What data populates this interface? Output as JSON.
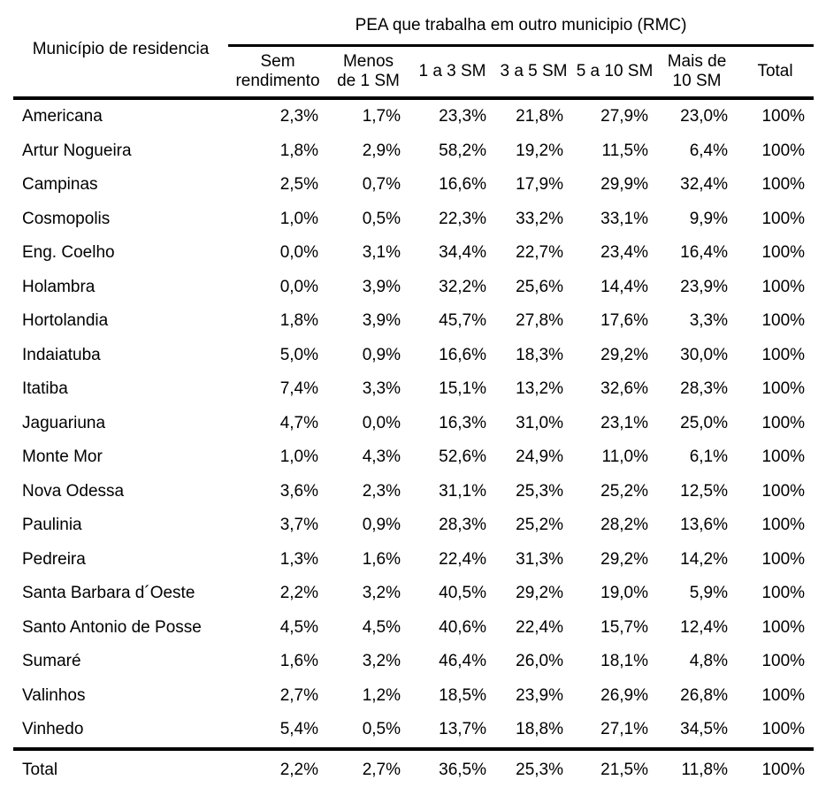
{
  "table": {
    "group_header": "PEA que trabalha em outro municipio (RMC)",
    "row_header_label": "Município de residencia",
    "columns": [
      "Sem\nrendimento",
      "Menos\nde 1 SM",
      "1 a 3 SM",
      "3 a 5 SM",
      "5 a 10 SM",
      "Mais de\n10 SM",
      "Total"
    ],
    "rows": [
      {
        "name": "Americana",
        "values": [
          "2,3%",
          "1,7%",
          "23,3%",
          "21,8%",
          "27,9%",
          "23,0%",
          "100%"
        ]
      },
      {
        "name": "Artur Nogueira",
        "values": [
          "1,8%",
          "2,9%",
          "58,2%",
          "19,2%",
          "11,5%",
          "6,4%",
          "100%"
        ]
      },
      {
        "name": "Campinas",
        "values": [
          "2,5%",
          "0,7%",
          "16,6%",
          "17,9%",
          "29,9%",
          "32,4%",
          "100%"
        ]
      },
      {
        "name": "Cosmopolis",
        "values": [
          "1,0%",
          "0,5%",
          "22,3%",
          "33,2%",
          "33,1%",
          "9,9%",
          "100%"
        ]
      },
      {
        "name": "Eng. Coelho",
        "values": [
          "0,0%",
          "3,1%",
          "34,4%",
          "22,7%",
          "23,4%",
          "16,4%",
          "100%"
        ]
      },
      {
        "name": "Holambra",
        "values": [
          "0,0%",
          "3,9%",
          "32,2%",
          "25,6%",
          "14,4%",
          "23,9%",
          "100%"
        ]
      },
      {
        "name": "Hortolandia",
        "values": [
          "1,8%",
          "3,9%",
          "45,7%",
          "27,8%",
          "17,6%",
          "3,3%",
          "100%"
        ]
      },
      {
        "name": "Indaiatuba",
        "values": [
          "5,0%",
          "0,9%",
          "16,6%",
          "18,3%",
          "29,2%",
          "30,0%",
          "100%"
        ]
      },
      {
        "name": "Itatiba",
        "values": [
          "7,4%",
          "3,3%",
          "15,1%",
          "13,2%",
          "32,6%",
          "28,3%",
          "100%"
        ]
      },
      {
        "name": "Jaguariuna",
        "values": [
          "4,7%",
          "0,0%",
          "16,3%",
          "31,0%",
          "23,1%",
          "25,0%",
          "100%"
        ]
      },
      {
        "name": "Monte Mor",
        "values": [
          "1,0%",
          "4,3%",
          "52,6%",
          "24,9%",
          "11,0%",
          "6,1%",
          "100%"
        ]
      },
      {
        "name": "Nova Odessa",
        "values": [
          "3,6%",
          "2,3%",
          "31,1%",
          "25,3%",
          "25,2%",
          "12,5%",
          "100%"
        ]
      },
      {
        "name": "Paulinia",
        "values": [
          "3,7%",
          "0,9%",
          "28,3%",
          "25,2%",
          "28,2%",
          "13,6%",
          "100%"
        ]
      },
      {
        "name": "Pedreira",
        "values": [
          "1,3%",
          "1,6%",
          "22,4%",
          "31,3%",
          "29,2%",
          "14,2%",
          "100%"
        ]
      },
      {
        "name": "Santa Barbara d´Oeste",
        "values": [
          "2,2%",
          "3,2%",
          "40,5%",
          "29,2%",
          "19,0%",
          "5,9%",
          "100%"
        ]
      },
      {
        "name": "Santo Antonio de Posse",
        "values": [
          "4,5%",
          "4,5%",
          "40,6%",
          "22,4%",
          "15,7%",
          "12,4%",
          "100%"
        ]
      },
      {
        "name": "Sumaré",
        "values": [
          "1,6%",
          "3,2%",
          "46,4%",
          "26,0%",
          "18,1%",
          "4,8%",
          "100%"
        ]
      },
      {
        "name": "Valinhos",
        "values": [
          "2,7%",
          "1,2%",
          "18,5%",
          "23,9%",
          "26,9%",
          "26,8%",
          "100%"
        ]
      },
      {
        "name": "Vinhedo",
        "values": [
          "5,4%",
          "0,5%",
          "13,7%",
          "18,8%",
          "27,1%",
          "34,5%",
          "100%"
        ]
      }
    ],
    "total_row": {
      "name": "Total",
      "values": [
        "2,2%",
        "2,7%",
        "36,5%",
        "25,3%",
        "21,5%",
        "11,8%",
        "100%"
      ]
    }
  }
}
